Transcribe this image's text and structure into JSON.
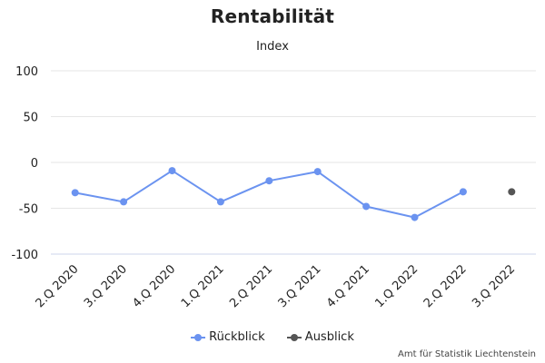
{
  "chart_data": {
    "type": "line",
    "title": "Rentabilität",
    "subtitle": "Index",
    "categories": [
      "2.Q 2020",
      "3.Q 2020",
      "4.Q 2020",
      "1.Q 2021",
      "2.Q 2021",
      "3.Q 2021",
      "4.Q 2021",
      "1.Q 2022",
      "2.Q 2022",
      "3.Q 2022"
    ],
    "ylim": [
      -100,
      100
    ],
    "yticks": [
      "100",
      "50",
      "0",
      "-50",
      "-100"
    ],
    "grid": true,
    "legend_position": "bottom",
    "series": [
      {
        "name": "Rückblick",
        "color": "#6b93f0",
        "values": [
          -33,
          -43,
          -9,
          -43,
          -20,
          -10,
          -48,
          -60,
          -32,
          null
        ]
      },
      {
        "name": "Ausblick",
        "color": "#555555",
        "values": [
          null,
          null,
          null,
          null,
          null,
          null,
          null,
          null,
          null,
          -32
        ]
      }
    ]
  },
  "credits": "Amt für Statistik Liechtenstein"
}
